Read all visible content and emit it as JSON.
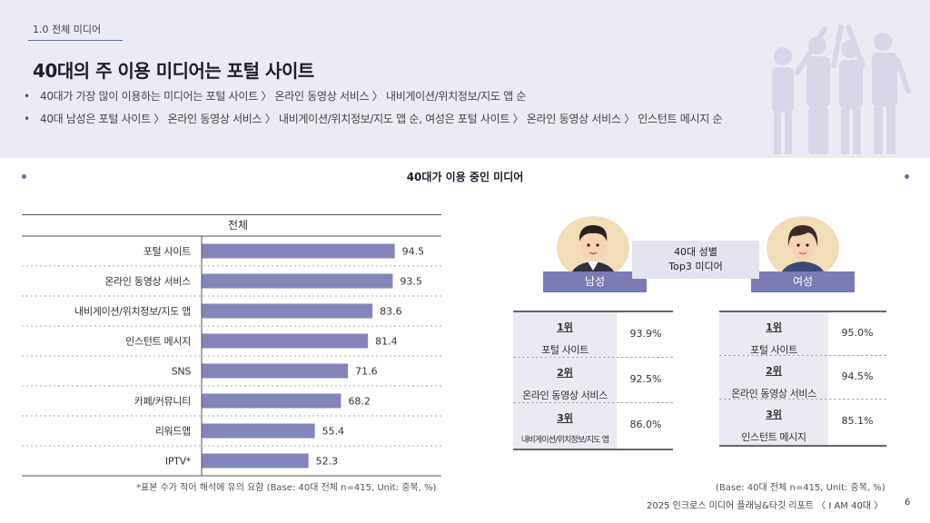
{
  "header": {
    "section_tag": "1.0 전체 미디어",
    "title": "40대의 주 이용 미디어는 포털 사이트",
    "bullets": [
      "40대가 가장 많이 이용하는 미디어는 포털 사이트 〉 온라인 동영상 서비스 〉 내비게이션/위치정보/지도 앱 순",
      "40대 남성은 포털 사이트 〉 온라인 동영상 서비스 〉 내비게이션/위치정보/지도 앱 순, 여성은 포털 사이트 〉 온라인 동영상 서비스 〉 인스턴트 메시지 순"
    ]
  },
  "section_title": "40대가 이용 중인 미디어",
  "chart_data": {
    "type": "bar",
    "orientation": "horizontal",
    "header": "전체",
    "categories": [
      "포털 사이트",
      "온라인 동영상 서비스",
      "내비게이션/위치정보/지도 앱",
      "인스턴트 메시지",
      "SNS",
      "카페/커뮤니티",
      "리워드앱",
      "IPTV*"
    ],
    "values": [
      94.5,
      93.5,
      83.6,
      81.4,
      71.6,
      68.2,
      55.4,
      52.3
    ],
    "value_labels": [
      "94.5",
      "93.5",
      "83.6",
      "81.4",
      "71.6",
      "68.2",
      "55.4",
      "52.3"
    ],
    "xlim": [
      0,
      100
    ],
    "bar_color": "#8584ba",
    "grid": false
  },
  "gender_top3": {
    "center_label_line1": "40대 성별",
    "center_label_line2": "Top3 미디어",
    "male": {
      "label": "남성",
      "ranks": [
        {
          "rank": "1위",
          "name": "포털 사이트",
          "pct": "93.9%"
        },
        {
          "rank": "2위",
          "name": "온라인 동영상 서비스",
          "pct": "92.5%"
        },
        {
          "rank": "3위",
          "name": "내비게이션/위치정보/지도 앱",
          "pct": "86.0%"
        }
      ]
    },
    "female": {
      "label": "여성",
      "ranks": [
        {
          "rank": "1위",
          "name": "포털 사이트",
          "pct": "95.0%"
        },
        {
          "rank": "2위",
          "name": "온라인 동영상 서비스",
          "pct": "94.5%"
        },
        {
          "rank": "3위",
          "name": "인스턴트 메시지",
          "pct": "85.1%"
        }
      ]
    }
  },
  "notes": {
    "left": "*표본 수가 적어 해석에 유의 요함 (Base: 40대 전체 n=415, Unit: 중복, %)",
    "right": "(Base: 40대 전체 n=415, Unit: 중복, %)"
  },
  "footer": {
    "report": "2025 인크로스 미디어 플래닝&타깃 리포트 〈 I AM 40대 〉",
    "page": "6"
  },
  "colors": {
    "accent": "#6b6aa8",
    "bar": "#8584ba",
    "header_bg": "#ebebf4",
    "label_bg": "#7c7bb4",
    "cell_bg": "#eaeaf2"
  },
  "icons": [
    "people-illustration-icon",
    "male-avatar-icon",
    "female-avatar-icon"
  ]
}
